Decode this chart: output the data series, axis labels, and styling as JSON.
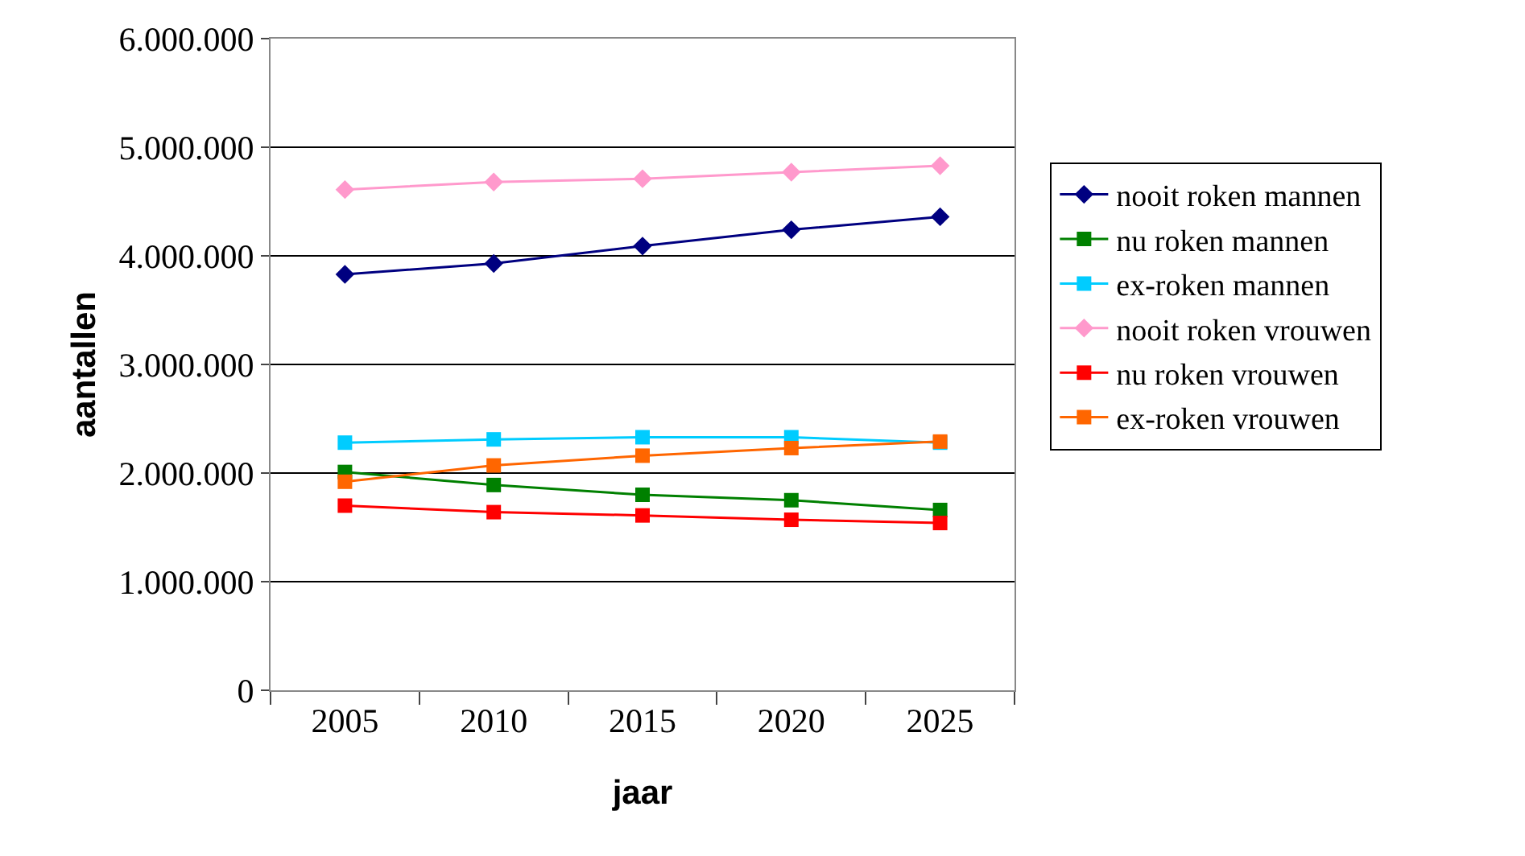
{
  "chart_data": {
    "type": "line",
    "xlabel": "jaar",
    "ylabel": "aantallen",
    "categories": [
      "2005",
      "2010",
      "2015",
      "2020",
      "2025"
    ],
    "ylim": [
      0,
      6000000
    ],
    "yticks": [
      {
        "value": 0,
        "label": "0"
      },
      {
        "value": 1000000,
        "label": "1.000.000"
      },
      {
        "value": 2000000,
        "label": "2.000.000"
      },
      {
        "value": 3000000,
        "label": "3.000.000"
      },
      {
        "value": 4000000,
        "label": "4.000.000"
      },
      {
        "value": 5000000,
        "label": "5.000.000"
      },
      {
        "value": 6000000,
        "label": "6.000.000"
      }
    ],
    "grid": "y",
    "legend": "right",
    "line_style": "solid",
    "series": [
      {
        "name": "nooit roken mannen",
        "color": "#000080",
        "marker": "diamond",
        "values": [
          3830000,
          3930000,
          4090000,
          4240000,
          4360000
        ]
      },
      {
        "name": "nu roken mannen",
        "color": "#008000",
        "marker": "square",
        "values": [
          2010000,
          1890000,
          1800000,
          1750000,
          1660000
        ]
      },
      {
        "name": "ex-roken mannen",
        "color": "#00ccff",
        "marker": "square",
        "values": [
          2280000,
          2310000,
          2330000,
          2330000,
          2280000
        ]
      },
      {
        "name": "nooit roken vrouwen",
        "color": "#ff99cc",
        "marker": "diamond",
        "values": [
          4610000,
          4680000,
          4710000,
          4770000,
          4830000
        ]
      },
      {
        "name": "nu roken vrouwen",
        "color": "#ff0000",
        "marker": "square",
        "values": [
          1700000,
          1640000,
          1610000,
          1570000,
          1540000
        ]
      },
      {
        "name": "ex-roken vrouwen",
        "color": "#ff6600",
        "marker": "square",
        "values": [
          1920000,
          2070000,
          2160000,
          2230000,
          2290000
        ]
      }
    ]
  }
}
